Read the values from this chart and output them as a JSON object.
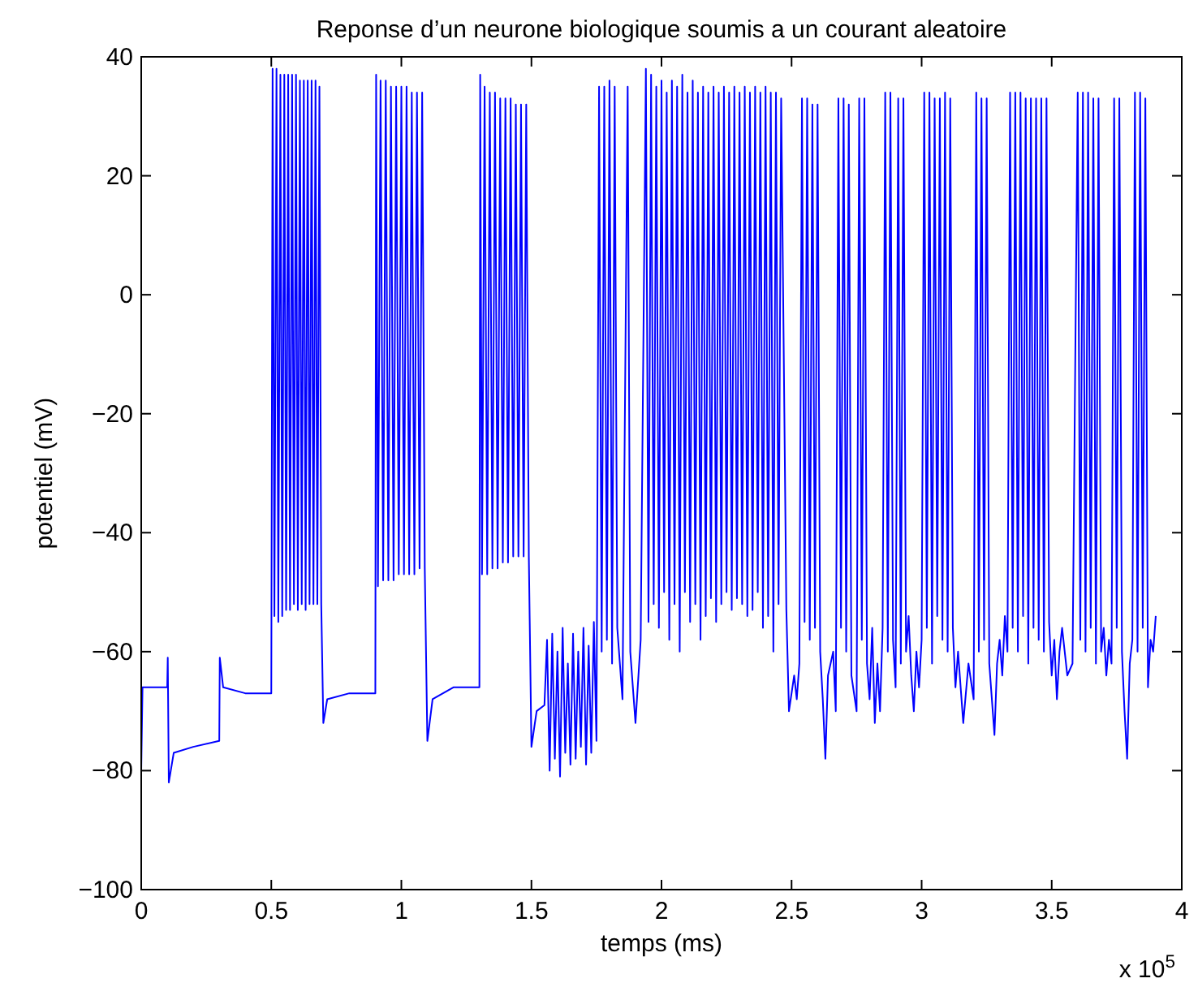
{
  "chart_data": {
    "type": "line",
    "title": "Reponse d’un neurone biologique soumis a un courant aleatoire",
    "xlabel": "temps (ms)",
    "ylabel": "potentiel (mV)",
    "annotations": [
      "x 10$^{5}$"
    ],
    "xlim": [
      0,
      4
    ],
    "xticks": [
      0,
      0.5,
      1,
      1.5,
      2,
      2.5,
      3,
      3.5,
      4
    ],
    "ylim": [
      -100,
      40
    ],
    "yticks": [
      {
        "value": -100,
        "label": "−100"
      },
      {
        "value": -80,
        "label": "−80"
      },
      {
        "value": -60,
        "label": "−60"
      },
      {
        "value": -40,
        "label": "−40"
      },
      {
        "value": -20,
        "label": "−20"
      },
      0,
      20,
      40
    ],
    "x": [
      0,
      0.005,
      0.1,
      0.102,
      0.106,
      0.125,
      0.2,
      0.3,
      0.302,
      0.315,
      0.4,
      0.5,
      0.505,
      0.512,
      0.52,
      0.527,
      0.535,
      0.542,
      0.55,
      0.557,
      0.565,
      0.572,
      0.58,
      0.587,
      0.595,
      0.602,
      0.61,
      0.617,
      0.625,
      0.632,
      0.64,
      0.647,
      0.655,
      0.662,
      0.67,
      0.677,
      0.685,
      0.692,
      0.7,
      0.715,
      0.8,
      0.9,
      0.903,
      0.91,
      0.92,
      0.93,
      0.94,
      0.95,
      0.96,
      0.97,
      0.98,
      0.99,
      1,
      1.01,
      1.02,
      1.03,
      1.04,
      1.05,
      1.06,
      1.07,
      1.08,
      1.09,
      1.1,
      1.12,
      1.2,
      1.3,
      1.303,
      1.31,
      1.32,
      1.33,
      1.34,
      1.35,
      1.36,
      1.37,
      1.38,
      1.39,
      1.4,
      1.41,
      1.42,
      1.43,
      1.44,
      1.45,
      1.46,
      1.47,
      1.48,
      1.49,
      1.5,
      1.52,
      1.55,
      1.56,
      1.57,
      1.58,
      1.59,
      1.6,
      1.61,
      1.62,
      1.63,
      1.64,
      1.65,
      1.66,
      1.67,
      1.68,
      1.69,
      1.7,
      1.71,
      1.72,
      1.73,
      1.74,
      1.75,
      1.76,
      1.77,
      1.78,
      1.79,
      1.8,
      1.81,
      1.82,
      1.83,
      1.85,
      1.87,
      1.88,
      1.9,
      1.92,
      1.94,
      1.95,
      1.96,
      1.97,
      1.98,
      1.99,
      2,
      2.01,
      2.02,
      2.03,
      2.04,
      2.05,
      2.06,
      2.07,
      2.08,
      2.09,
      2.1,
      2.11,
      2.12,
      2.13,
      2.14,
      2.15,
      2.16,
      2.17,
      2.18,
      2.19,
      2.2,
      2.21,
      2.22,
      2.23,
      2.24,
      2.25,
      2.26,
      2.27,
      2.28,
      2.29,
      2.3,
      2.31,
      2.32,
      2.33,
      2.34,
      2.35,
      2.36,
      2.37,
      2.38,
      2.39,
      2.4,
      2.41,
      2.42,
      2.43,
      2.44,
      2.45,
      2.46,
      2.48,
      2.49,
      2.51,
      2.52,
      2.53,
      2.54,
      2.55,
      2.56,
      2.57,
      2.58,
      2.59,
      2.6,
      2.61,
      2.62,
      2.63,
      2.64,
      2.66,
      2.67,
      2.68,
      2.69,
      2.7,
      2.71,
      2.72,
      2.73,
      2.75,
      2.76,
      2.77,
      2.78,
      2.79,
      2.8,
      2.81,
      2.82,
      2.83,
      2.84,
      2.85,
      2.86,
      2.87,
      2.88,
      2.89,
      2.9,
      2.91,
      2.92,
      2.93,
      2.94,
      2.95,
      2.96,
      2.97,
      2.98,
      2.99,
      3,
      3.01,
      3.02,
      3.03,
      3.04,
      3.05,
      3.06,
      3.07,
      3.08,
      3.09,
      3.1,
      3.11,
      3.12,
      3.13,
      3.14,
      3.16,
      3.18,
      3.2,
      3.21,
      3.22,
      3.23,
      3.24,
      3.25,
      3.26,
      3.27,
      3.28,
      3.29,
      3.3,
      3.31,
      3.32,
      3.33,
      3.34,
      3.35,
      3.36,
      3.37,
      3.38,
      3.39,
      3.4,
      3.41,
      3.42,
      3.43,
      3.44,
      3.45,
      3.46,
      3.47,
      3.48,
      3.49,
      3.5,
      3.51,
      3.52,
      3.53,
      3.54,
      3.56,
      3.58,
      3.6,
      3.61,
      3.62,
      3.63,
      3.64,
      3.65,
      3.66,
      3.67,
      3.68,
      3.69,
      3.7,
      3.71,
      3.72,
      3.73,
      3.74,
      3.75,
      3.76,
      3.77,
      3.78,
      3.79,
      3.8,
      3.81,
      3.82,
      3.83,
      3.84,
      3.85,
      3.86,
      3.87,
      3.88,
      3.89,
      3.9
    ],
    "series": [
      {
        "color": "#0000ff",
        "values": [
          -80,
          -66,
          -66,
          -61,
          -82,
          -77,
          -76,
          -75,
          -61,
          -66,
          -67,
          -67,
          38,
          -54,
          38,
          -55,
          37,
          -54,
          37,
          -53,
          37,
          -53,
          37,
          -52,
          37,
          -53,
          36,
          -52,
          36,
          -53,
          36,
          -52,
          36,
          -52,
          36,
          -52,
          35,
          -52,
          -72,
          -68,
          -67,
          -67,
          37,
          -49,
          36,
          -48,
          36,
          -48,
          35,
          -48,
          35,
          -47,
          35,
          -47,
          35,
          -47,
          34,
          -47,
          34,
          -46,
          34,
          -46,
          -75,
          -68,
          -66,
          -66,
          37,
          -47,
          35,
          -47,
          34,
          -46,
          34,
          -46,
          33,
          -45,
          33,
          -45,
          33,
          -44,
          32,
          -44,
          32,
          -44,
          32,
          -44,
          -76,
          -70,
          -69,
          -58,
          -80,
          -57,
          -78,
          -60,
          -81,
          -56,
          -77,
          -62,
          -79,
          -57,
          -78,
          -60,
          -76,
          -56,
          -79,
          -59,
          -77,
          -55,
          -75,
          35,
          -60,
          35,
          -58,
          36,
          -62,
          35,
          -56,
          -68,
          35,
          -60,
          -72,
          -58,
          38,
          -55,
          37,
          -52,
          35,
          -56,
          36,
          -50,
          34,
          -58,
          36,
          -52,
          35,
          -60,
          37,
          -50,
          34,
          -55,
          36,
          -52,
          34,
          -58,
          35,
          -54,
          34,
          -51,
          35,
          -55,
          34,
          -52,
          35,
          -50,
          34,
          -53,
          35,
          -51,
          34,
          -52,
          35,
          -54,
          34,
          -53,
          35,
          -50,
          34,
          -56,
          35,
          -54,
          34,
          -60,
          34,
          -52,
          33,
          -53,
          -70,
          -64,
          -68,
          -62,
          33,
          -55,
          33,
          -58,
          32,
          -56,
          32,
          -60,
          -68,
          -78,
          -64,
          -60,
          -70,
          33,
          -56,
          33,
          -60,
          32,
          -64,
          -70,
          33,
          -58,
          33,
          -62,
          -68,
          -56,
          -72,
          -62,
          -70,
          -56,
          34,
          -60,
          34,
          -58,
          -66,
          33,
          -62,
          33,
          -60,
          -54,
          -64,
          -70,
          -60,
          -66,
          -58,
          34,
          -56,
          34,
          -62,
          33,
          -54,
          33,
          -58,
          34,
          -60,
          33,
          -56,
          -66,
          -60,
          -72,
          -62,
          -68,
          34,
          -60,
          33,
          -58,
          33,
          -62,
          -68,
          -74,
          -62,
          -58,
          -64,
          -54,
          -60,
          34,
          -56,
          34,
          -60,
          34,
          -54,
          33,
          -62,
          33,
          -56,
          33,
          -58,
          33,
          -60,
          33,
          -55,
          -64,
          -58,
          -68,
          -60,
          -56,
          -64,
          -62,
          34,
          -58,
          34,
          -60,
          34,
          -56,
          33,
          -62,
          33,
          -60,
          -56,
          -64,
          -58,
          -62,
          33,
          -56,
          33,
          -60,
          -70,
          -78,
          -62,
          -58,
          34,
          -60,
          34,
          -56,
          33,
          -66,
          -58,
          -60,
          -54
        ]
      }
    ]
  }
}
